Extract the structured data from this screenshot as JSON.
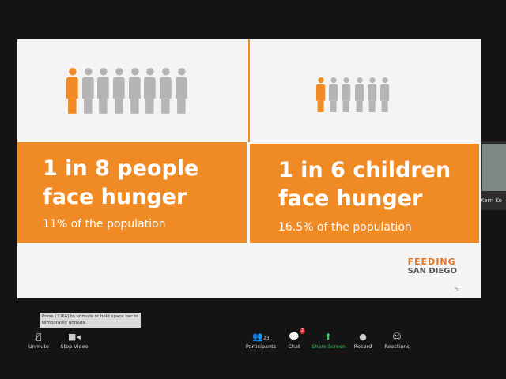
{
  "slide": {
    "left": {
      "headline_line1": "1 in 8 people",
      "headline_line2": "face hunger",
      "subtext": "11% of the population",
      "people_total": 8,
      "people_highlighted": 1
    },
    "right": {
      "headline_line1": "1 in 6 children",
      "headline_line2": "face hunger",
      "subtext": "16.5% of the population",
      "people_total": 6,
      "people_highlighted": 1
    },
    "logo": {
      "line1": "FEEDING",
      "line2": "SAN DIEGO"
    },
    "page_number": "5",
    "colors": {
      "accent": "#f08a24",
      "person_gray": "#b5b5b5"
    }
  },
  "participant": {
    "name": "Kerri Ko"
  },
  "tooltip": "Press (⇧⌘A) to unmute or hold space bar to temporarily unmute.",
  "toolbar": {
    "unmute": "Unmute",
    "stop_video": "Stop Video",
    "participants": "Participants",
    "participants_count": "23",
    "chat": "Chat",
    "chat_badge": "2",
    "share_screen": "Share Screen",
    "record": "Record",
    "reactions": "Reactions"
  }
}
